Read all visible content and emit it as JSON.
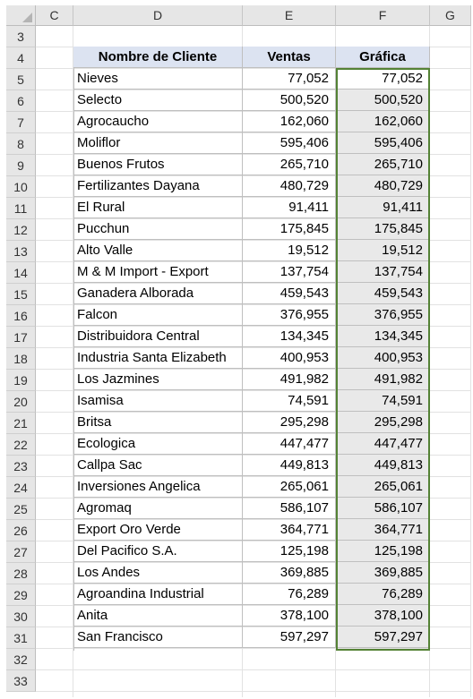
{
  "columns": [
    "C",
    "D",
    "E",
    "F",
    "G"
  ],
  "rows": [
    "3",
    "4",
    "5",
    "6",
    "7",
    "8",
    "9",
    "10",
    "11",
    "12",
    "13",
    "14",
    "15",
    "16",
    "17",
    "18",
    "19",
    "20",
    "21",
    "22",
    "23",
    "24",
    "25",
    "26",
    "27",
    "28",
    "29",
    "30",
    "31",
    "32",
    "33"
  ],
  "table": {
    "headers": {
      "name": "Nombre de Cliente",
      "sales": "Ventas",
      "chart": "Gráfica"
    },
    "records": [
      {
        "name": "Nieves",
        "sales": "77,052",
        "chart": "77,052"
      },
      {
        "name": "Selecto",
        "sales": "500,520",
        "chart": "500,520"
      },
      {
        "name": "Agrocaucho",
        "sales": "162,060",
        "chart": "162,060"
      },
      {
        "name": "Moliflor",
        "sales": "595,406",
        "chart": "595,406"
      },
      {
        "name": "Buenos Frutos",
        "sales": "265,710",
        "chart": "265,710"
      },
      {
        "name": "Fertilizantes Dayana",
        "sales": "480,729",
        "chart": "480,729"
      },
      {
        "name": "El Rural",
        "sales": "91,411",
        "chart": "91,411"
      },
      {
        "name": "Pucchun",
        "sales": "175,845",
        "chart": "175,845"
      },
      {
        "name": "Alto Valle",
        "sales": "19,512",
        "chart": "19,512"
      },
      {
        "name": "M & M Import - Export",
        "sales": "137,754",
        "chart": "137,754"
      },
      {
        "name": "Ganadera Alborada",
        "sales": "459,543",
        "chart": "459,543"
      },
      {
        "name": "Falcon",
        "sales": "376,955",
        "chart": "376,955"
      },
      {
        "name": "Distribuidora Central",
        "sales": "134,345",
        "chart": "134,345"
      },
      {
        "name": "Industria Santa Elizabeth",
        "sales": "400,953",
        "chart": "400,953"
      },
      {
        "name": "Los Jazmines",
        "sales": "491,982",
        "chart": "491,982"
      },
      {
        "name": "Isamisa",
        "sales": "74,591",
        "chart": "74,591"
      },
      {
        "name": "Britsa",
        "sales": "295,298",
        "chart": "295,298"
      },
      {
        "name": "Ecologica",
        "sales": "447,477",
        "chart": "447,477"
      },
      {
        "name": "Callpa Sac",
        "sales": "449,813",
        "chart": "449,813"
      },
      {
        "name": "Inversiones Angelica",
        "sales": "265,061",
        "chart": "265,061"
      },
      {
        "name": "Agromaq",
        "sales": "586,107",
        "chart": "586,107"
      },
      {
        "name": "Export Oro Verde",
        "sales": "364,771",
        "chart": "364,771"
      },
      {
        "name": "Del Pacifico S.A.",
        "sales": "125,198",
        "chart": "125,198"
      },
      {
        "name": "Los Andes",
        "sales": "369,885",
        "chart": "369,885"
      },
      {
        "name": "Agroandina Industrial",
        "sales": "76,289",
        "chart": "76,289"
      },
      {
        "name": "Anita",
        "sales": "378,100",
        "chart": "378,100"
      },
      {
        "name": "San Francisco",
        "sales": "597,297",
        "chart": "597,297"
      }
    ]
  },
  "colors": {
    "header_fill": "#dce3f1",
    "selection_border": "#548235",
    "selected_fill": "#e9e9e9"
  }
}
